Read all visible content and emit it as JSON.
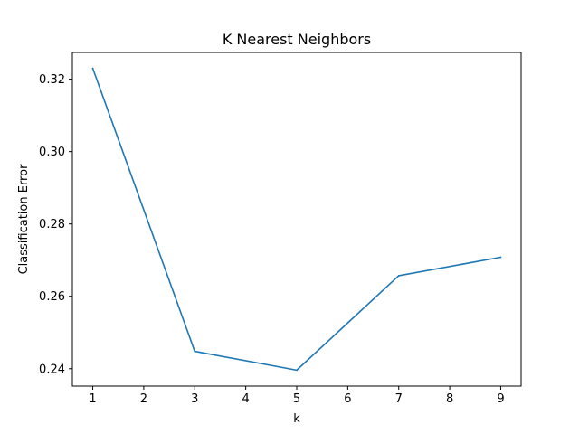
{
  "chart_data": {
    "type": "line",
    "title": "K Nearest Neighbors",
    "xlabel": "k",
    "ylabel": "Classification Error",
    "x": [
      1,
      3,
      5,
      7,
      9
    ],
    "series": [
      {
        "values": [
          0.323,
          0.2448,
          0.2396,
          0.2657,
          0.2708
        ]
      }
    ],
    "xlim": [
      0.6,
      9.4
    ],
    "ylim": [
      0.2352,
      0.3274
    ],
    "xticks": [
      1,
      2,
      3,
      4,
      5,
      6,
      7,
      8,
      9
    ],
    "xtick_labels": [
      "1",
      "2",
      "3",
      "4",
      "5",
      "6",
      "7",
      "8",
      "9"
    ],
    "yticks": [
      0.24,
      0.26,
      0.28,
      0.3,
      0.32
    ],
    "ytick_labels": [
      "0.24",
      "0.26",
      "0.28",
      "0.30",
      "0.32"
    ],
    "grid": false,
    "legend": "none",
    "line_color": "#1f77b4"
  }
}
